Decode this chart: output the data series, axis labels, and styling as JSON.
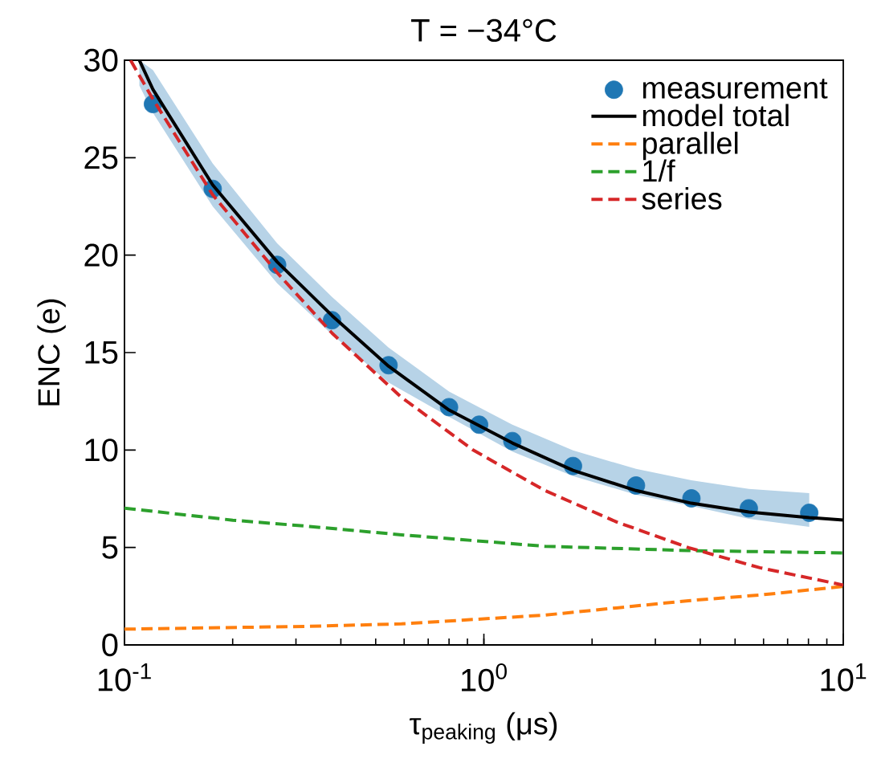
{
  "chart_data": {
    "type": "line",
    "title": "T = −34°C",
    "xlabel": "τ$_{peaking}$ (μs)",
    "ylabel": "ENC (e)",
    "log": "x",
    "xlim": [
      0.1,
      10
    ],
    "ylim": [
      0,
      30
    ],
    "xticks": [
      {
        "value": 0.1,
        "label": "10$^{-1}$"
      },
      {
        "value": 1,
        "label": "10$^{0}$"
      },
      {
        "value": 10,
        "label": "10$^{1}$"
      }
    ],
    "yticks": [
      0,
      5,
      10,
      15,
      20,
      25,
      30
    ],
    "grid": false,
    "legend": "top right",
    "series": [
      {
        "name": "measurement",
        "type": "scatter",
        "marker": "circle",
        "color": "#1f77b4",
        "x": [
          0.12,
          0.176,
          0.266,
          0.378,
          0.543,
          0.8,
          0.97,
          1.2,
          1.77,
          2.65,
          3.78,
          5.46,
          8.04
        ],
        "values": [
          27.75,
          23.4,
          19.5,
          16.66,
          14.35,
          12.2,
          11.3,
          10.46,
          9.18,
          8.18,
          7.52,
          7.01,
          6.78
        ]
      },
      {
        "name": "model total",
        "line_style": "solid",
        "color": "#000000",
        "x": [
          0.11,
          0.12,
          0.176,
          0.266,
          0.378,
          0.543,
          0.8,
          1.2,
          1.77,
          2.65,
          3.78,
          5.46,
          8.04,
          10
        ],
        "values": [
          30,
          28.5,
          23.6,
          19.65,
          16.9,
          14.3,
          12.05,
          10.36,
          8.96,
          7.92,
          7.27,
          6.82,
          6.53,
          6.41
        ],
        "lower": [
          28.7,
          27.3,
          22.5,
          18.55,
          15.93,
          13.46,
          11.7,
          9.92,
          8.66,
          7.71,
          7.13,
          6.47,
          6.06,
          null
        ],
        "upper": [
          30,
          29.5,
          24.7,
          20.6,
          17.85,
          15.26,
          13.0,
          11.3,
          9.98,
          9.03,
          8.45,
          8.0,
          7.79,
          null
        ]
      },
      {
        "name": "parallel",
        "line_style": "dashed",
        "color": "#ff7f0e",
        "x": [
          0.1,
          0.318,
          0.59,
          1.48,
          2.34,
          3.71,
          5.86,
          10
        ],
        "values": [
          0.81,
          0.95,
          1.08,
          1.53,
          1.9,
          2.27,
          2.56,
          3.0
        ]
      },
      {
        "name": "1/f",
        "line_style": "dashed",
        "color": "#2ca02c",
        "x": [
          0.1,
          0.2,
          0.318,
          0.59,
          1.48,
          3.71,
          10
        ],
        "values": [
          7.02,
          6.4,
          6.1,
          5.65,
          5.06,
          4.84,
          4.72
        ]
      },
      {
        "name": "series",
        "line_style": "dashed",
        "color": "#d62728",
        "x": [
          0.104,
          0.12,
          0.176,
          0.266,
          0.378,
          0.59,
          0.643,
          0.933,
          1.48,
          2.34,
          3.71,
          5.86,
          10
        ],
        "values": [
          30,
          28.0,
          23.1,
          19.1,
          16.0,
          12.7,
          12.2,
          10.0,
          7.92,
          6.31,
          4.99,
          3.96,
          3.07
        ]
      }
    ]
  }
}
